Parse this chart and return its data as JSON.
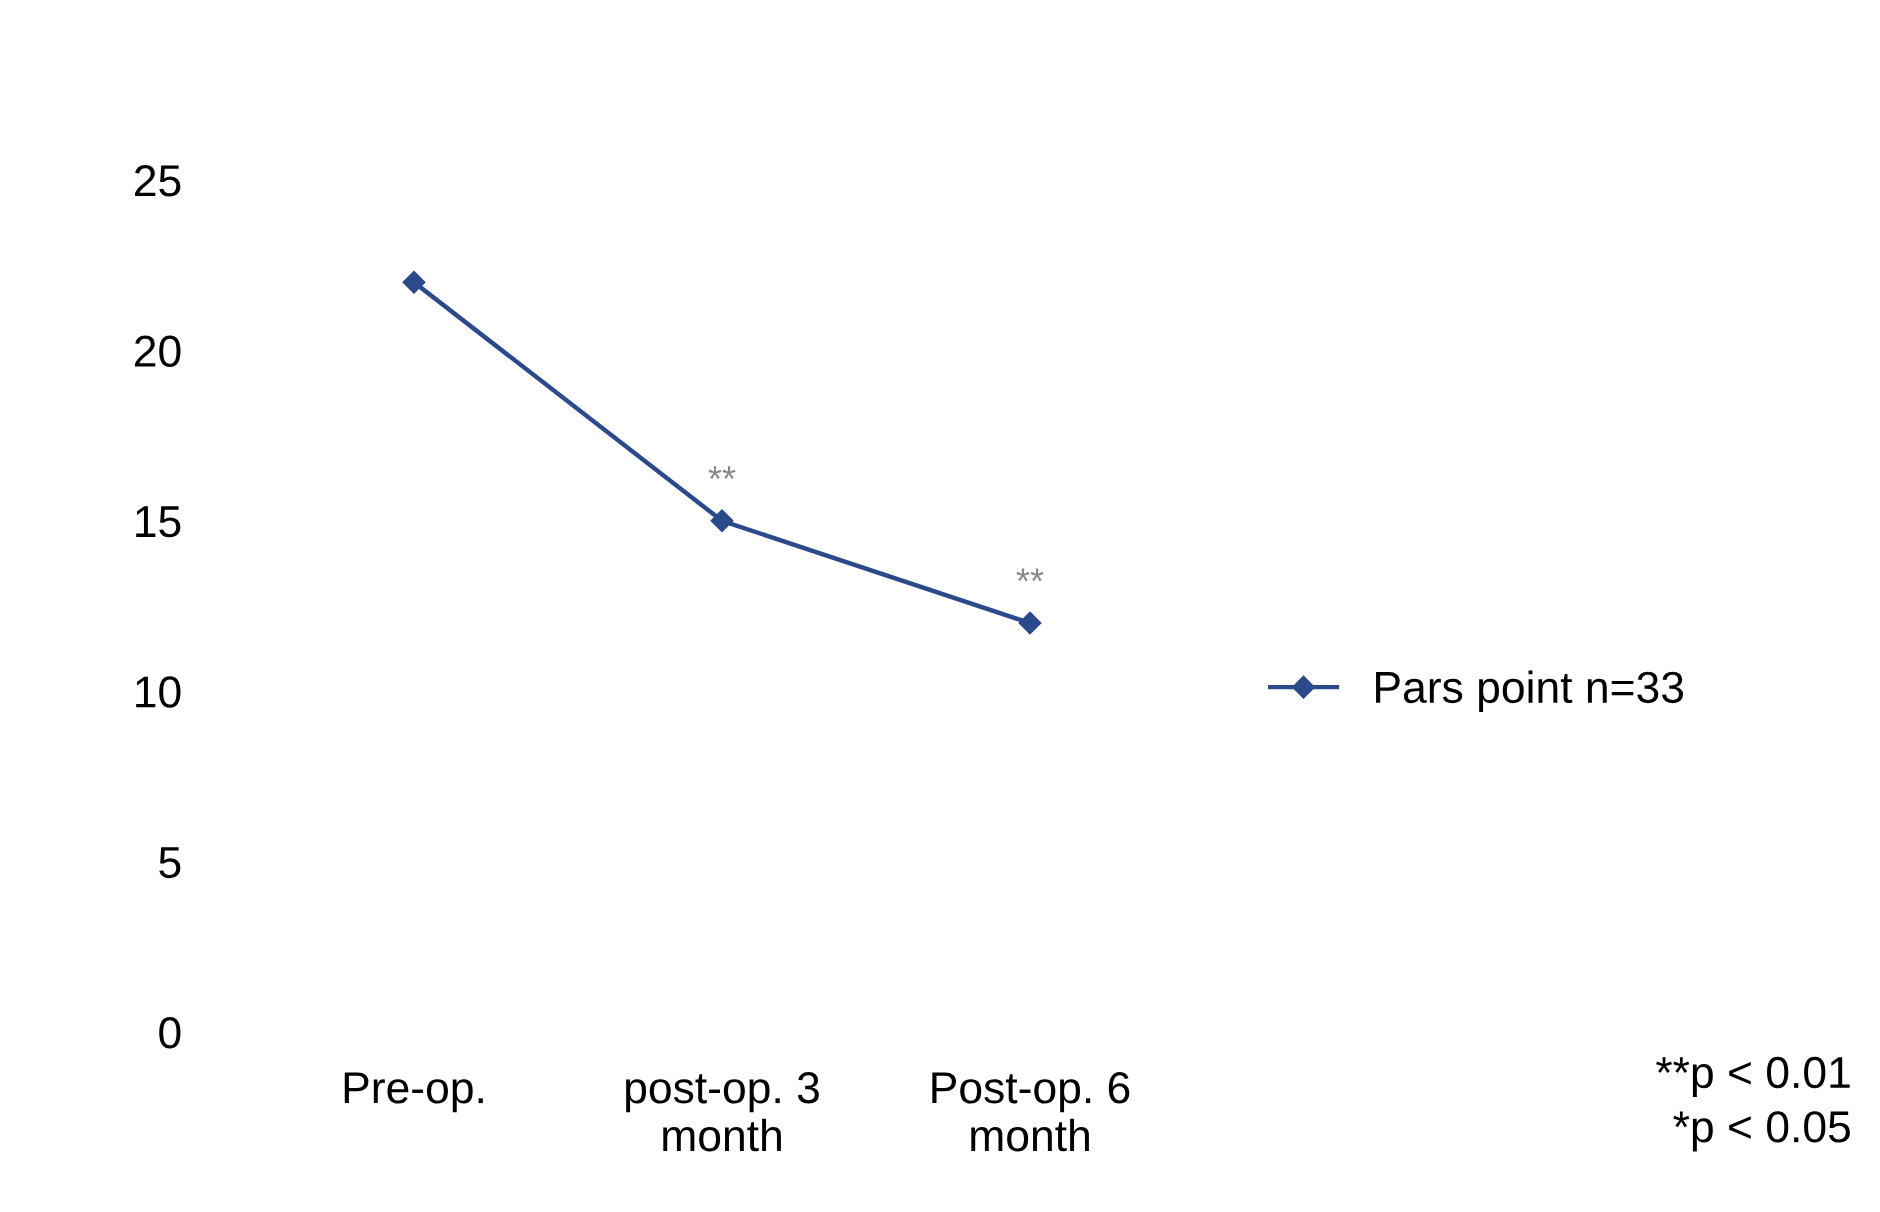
{
  "chart_data": {
    "type": "line",
    "categories": [
      "Pre-op.",
      "post-op. 3\nmonth",
      "Post-op. 6\nmonth"
    ],
    "series": [
      {
        "name": "Pars point n=33",
        "color": "#2b4a8c",
        "values": [
          22,
          15,
          12
        ]
      }
    ],
    "ylim": [
      0,
      25
    ],
    "yticks": [
      0,
      5,
      10,
      15,
      20,
      25
    ],
    "marker": "diamond",
    "line_style": "solid",
    "grid": false,
    "legend": "right",
    "annotations": [
      {
        "text": "**",
        "x": "post-op. 3\nmonth",
        "y": 15
      },
      {
        "text": "**",
        "x": "Post-op. 6\nmonth",
        "y": 12
      },
      "**p < 0.01\n*p < 0.05"
    ]
  }
}
